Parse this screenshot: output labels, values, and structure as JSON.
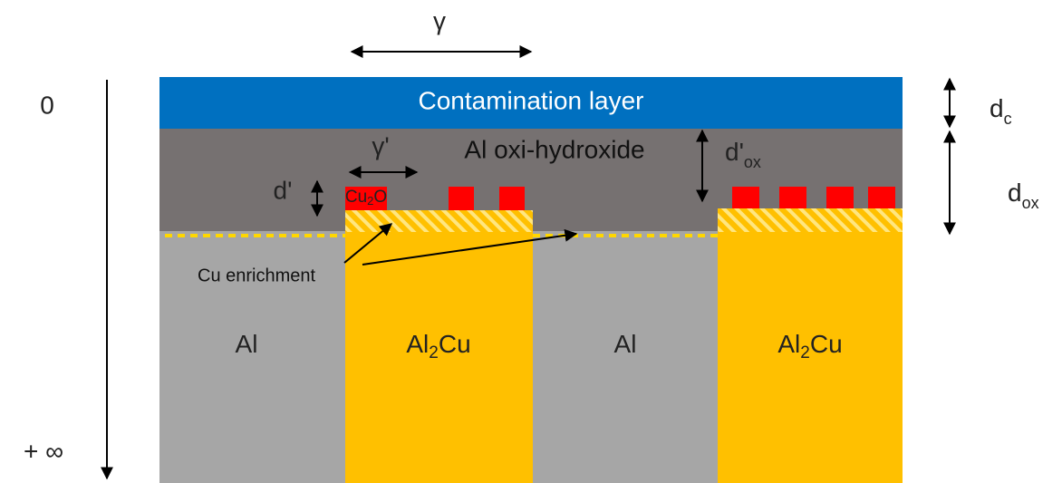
{
  "axis": {
    "top": "0",
    "bottom": "+ ∞"
  },
  "gamma": "γ",
  "gamma_prime": "γ'",
  "layers": {
    "contamination": "Contamination layer",
    "oxide": "Al oxi-hydroxide"
  },
  "cu2o": {
    "main": "Cu",
    "sub": "2",
    "post": "O"
  },
  "d_prime": "d'",
  "d_prime_ox": {
    "main": "d'",
    "sub": "ox"
  },
  "d_c": {
    "main": "d",
    "sub": "c"
  },
  "d_ox": {
    "main": "d",
    "sub": "ox"
  },
  "cu_enrichment": "Cu enrichment",
  "phases": [
    {
      "pre": "Al"
    },
    {
      "pre": "Al",
      "sub": "2",
      "post": "Cu"
    },
    {
      "pre": "Al"
    },
    {
      "pre": "Al",
      "sub": "2",
      "post": "Cu"
    }
  ]
}
